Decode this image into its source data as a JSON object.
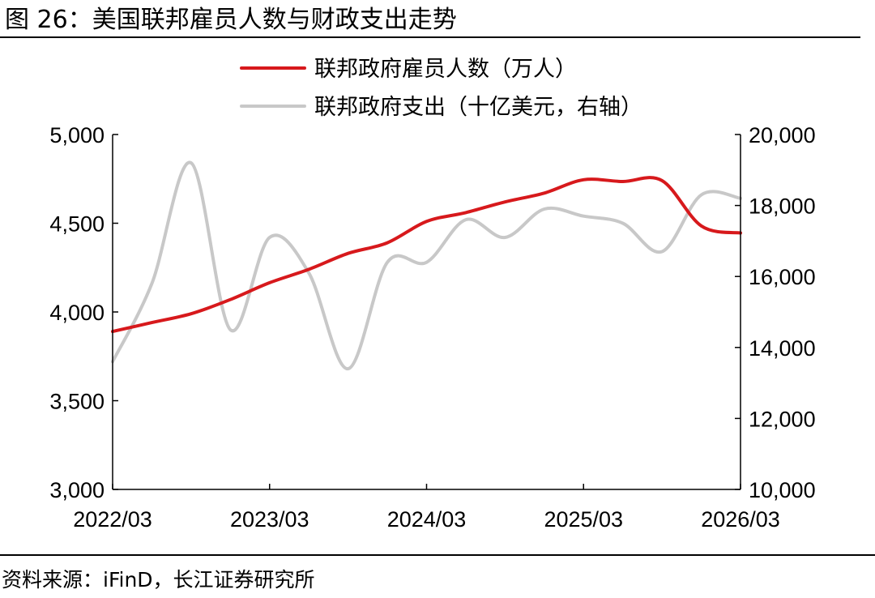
{
  "figure": {
    "title": "图 26：美国联邦雇员人数与财政支出走势",
    "source": "资料来源：iFinD，长江证券研究所"
  },
  "colors": {
    "employees": "#d7191c",
    "spending": "#c8c8c8",
    "axis": "#000000"
  },
  "chart_data": {
    "type": "line",
    "grid": false,
    "legend_position": "top-center",
    "x_tick_labels": [
      "2022/03",
      "2023/03",
      "2024/03",
      "2025/03",
      "2026/03"
    ],
    "left_axis": {
      "range": [
        3000,
        5000
      ],
      "ticks": [
        3000,
        3500,
        4000,
        4500,
        5000
      ],
      "tick_labels": [
        "3,000",
        "3,500",
        "4,000",
        "4,500",
        "5,000"
      ]
    },
    "right_axis": {
      "range": [
        10000,
        20000
      ],
      "ticks": [
        10000,
        12000,
        14000,
        16000,
        18000,
        20000
      ],
      "tick_labels": [
        "10,000",
        "12,000",
        "14,000",
        "16,000",
        "18,000",
        "20,000"
      ]
    },
    "series": [
      {
        "name": "联邦政府雇员人数（万人）",
        "axis": "left",
        "color": "#d7191c",
        "points": [
          [
            "2022-03",
            3890
          ],
          [
            "2022-06",
            3940
          ],
          [
            "2022-09",
            3990
          ],
          [
            "2022-12",
            4070
          ],
          [
            "2023-03",
            4165
          ],
          [
            "2023-06",
            4240
          ],
          [
            "2023-09",
            4330
          ],
          [
            "2023-12",
            4390
          ],
          [
            "2024-03",
            4510
          ],
          [
            "2024-06",
            4560
          ],
          [
            "2024-09",
            4620
          ],
          [
            "2024-12",
            4670
          ],
          [
            "2025-03",
            4745
          ],
          [
            "2025-06",
            4735
          ],
          [
            "2025-09",
            4740
          ],
          [
            "2025-12",
            4485
          ],
          [
            "2026-03",
            4445
          ]
        ]
      },
      {
        "name": "联邦政府支出（十亿美元，右轴）",
        "axis": "right",
        "color": "#c8c8c8",
        "points": [
          [
            "2022-03",
            13600
          ],
          [
            "2022-06",
            15800
          ],
          [
            "2022-09",
            19200
          ],
          [
            "2022-12",
            14500
          ],
          [
            "2023-03",
            17100
          ],
          [
            "2023-06",
            16100
          ],
          [
            "2023-09",
            13400
          ],
          [
            "2023-12",
            16400
          ],
          [
            "2024-03",
            16400
          ],
          [
            "2024-06",
            17600
          ],
          [
            "2024-09",
            17100
          ],
          [
            "2024-12",
            17900
          ],
          [
            "2025-03",
            17700
          ],
          [
            "2025-06",
            17500
          ],
          [
            "2025-09",
            16700
          ],
          [
            "2025-12",
            18300
          ],
          [
            "2026-03",
            18200
          ]
        ]
      }
    ]
  }
}
